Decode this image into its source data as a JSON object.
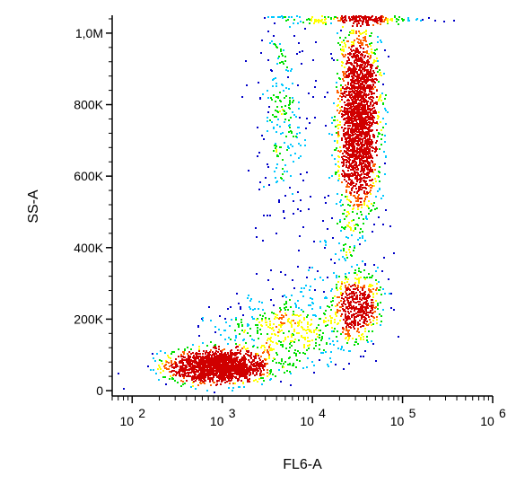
{
  "chart_data": {
    "type": "scatter",
    "subtype": "flow-cytometry density dot plot",
    "title": "",
    "xlabel": "FL6-A",
    "ylabel": "SS-A",
    "x_scale": "log",
    "xlim": [
      60,
      1000000
    ],
    "ylim": [
      -15000,
      1050000
    ],
    "x_ticks": [
      {
        "value": 100,
        "label": "10",
        "exp": "2"
      },
      {
        "value": 1000,
        "label": "10",
        "exp": "3"
      },
      {
        "value": 10000,
        "label": "10",
        "exp": "4"
      },
      {
        "value": 100000,
        "label": "10",
        "exp": "5"
      },
      {
        "value": 1000000,
        "label": "10",
        "exp": "6"
      }
    ],
    "y_ticks": [
      {
        "value": 0,
        "label": "0"
      },
      {
        "value": 200000,
        "label": "200K"
      },
      {
        "value": 400000,
        "label": "400K"
      },
      {
        "value": 600000,
        "label": "600K"
      },
      {
        "value": 800000,
        "label": "800K"
      },
      {
        "value": 1000000,
        "label": "1,0M"
      }
    ],
    "grid": false,
    "legend": "none",
    "density_colors": [
      "#0000c8",
      "#00c8ff",
      "#00e000",
      "#ffff00",
      "#ff6000",
      "#d00000"
    ],
    "populations": [
      {
        "x_center": 900,
        "y_center": 70000,
        "x_spread_decades": 0.27,
        "y_spread": 22000,
        "count": 1700
      },
      {
        "x_center": 32000,
        "y_center": 760000,
        "x_spread_decades": 0.11,
        "y_spread": 130000,
        "count": 2200
      },
      {
        "x_center": 30000,
        "y_center": 240000,
        "x_spread_decades": 0.13,
        "y_spread": 50000,
        "count": 500
      },
      {
        "x_center": 4500,
        "y_center": 780000,
        "x_spread_decades": 0.15,
        "y_spread": 150000,
        "count": 260
      },
      {
        "x_center": 5000,
        "y_center": 170000,
        "x_spread_decades": 0.4,
        "y_spread": 55000,
        "count": 450
      },
      {
        "x_center": 18000,
        "y_center": 400000,
        "x_spread_decades": 0.25,
        "y_spread": 120000,
        "count": 120
      },
      {
        "x_center": 30000,
        "y_center": 1040000,
        "x_spread_decades": 0.35,
        "y_spread": 6000,
        "count": 180
      }
    ]
  }
}
